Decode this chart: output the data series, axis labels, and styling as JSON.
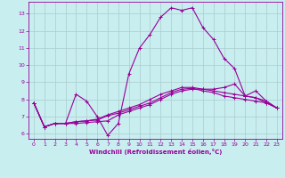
{
  "xlabel": "Windchill (Refroidissement éolien,°C)",
  "bg_color": "#c8eef0",
  "line_color": "#990099",
  "grid_color": "#aacccc",
  "xlim": [
    -0.5,
    23.5
  ],
  "ylim": [
    5.7,
    13.7
  ],
  "yticks": [
    6,
    7,
    8,
    9,
    10,
    11,
    12,
    13
  ],
  "xticks": [
    0,
    1,
    2,
    3,
    4,
    5,
    6,
    7,
    8,
    9,
    10,
    11,
    12,
    13,
    14,
    15,
    16,
    17,
    18,
    19,
    20,
    21,
    22,
    23
  ],
  "series": [
    [
      7.8,
      6.4,
      6.6,
      6.6,
      8.3,
      7.9,
      7.0,
      5.9,
      6.6,
      9.5,
      11.0,
      11.8,
      12.8,
      13.35,
      13.2,
      13.35,
      12.2,
      11.5,
      10.4,
      9.8,
      8.2,
      8.5,
      7.9,
      7.5
    ],
    [
      7.8,
      6.4,
      6.6,
      6.6,
      6.6,
      6.65,
      6.7,
      6.75,
      7.1,
      7.3,
      7.5,
      7.7,
      8.0,
      8.3,
      8.5,
      8.6,
      8.6,
      8.6,
      8.7,
      8.9,
      8.2,
      8.1,
      7.8,
      7.5
    ],
    [
      7.8,
      6.4,
      6.6,
      6.6,
      6.7,
      6.75,
      6.8,
      7.05,
      7.2,
      7.4,
      7.6,
      7.8,
      8.1,
      8.4,
      8.6,
      8.65,
      8.5,
      8.4,
      8.2,
      8.1,
      8.0,
      7.9,
      7.8,
      7.5
    ],
    [
      7.8,
      6.4,
      6.6,
      6.6,
      6.7,
      6.75,
      6.85,
      7.1,
      7.3,
      7.5,
      7.7,
      8.0,
      8.3,
      8.5,
      8.7,
      8.7,
      8.6,
      8.5,
      8.4,
      8.3,
      8.2,
      8.1,
      7.9,
      7.5
    ]
  ]
}
